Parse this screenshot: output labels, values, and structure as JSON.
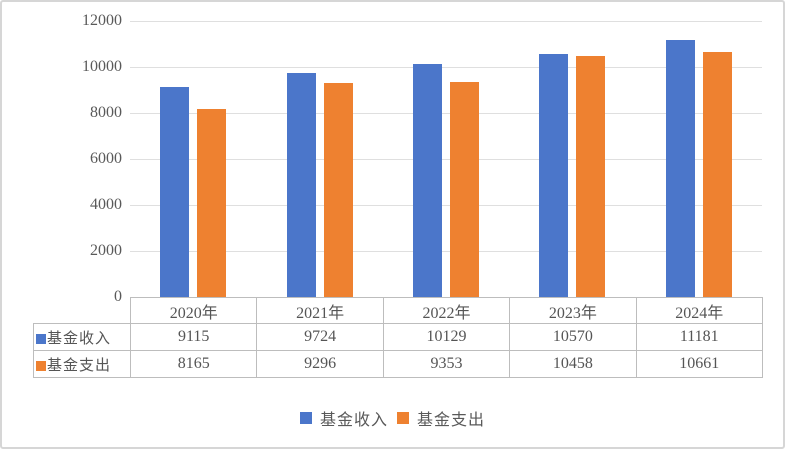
{
  "chart_data": {
    "type": "bar",
    "title": "",
    "xlabel": "",
    "ylabel": "",
    "categories": [
      "2020年",
      "2021年",
      "2022年",
      "2023年",
      "2024年"
    ],
    "series": [
      {
        "name": "基金收入",
        "values": [
          9115,
          9724,
          10129,
          10570,
          11181
        ],
        "color": "#4B76CA"
      },
      {
        "name": "基金支出",
        "values": [
          8165,
          9296,
          9353,
          10458,
          10661
        ],
        "color": "#EE8130"
      }
    ],
    "ylim": [
      0,
      12000
    ],
    "yticks": [
      0,
      2000,
      4000,
      6000,
      8000,
      10000,
      12000
    ],
    "grid": true,
    "legend_position": "bottom",
    "show_data_table": true
  },
  "colors": {
    "series_income": "#4B76CA",
    "series_expense": "#EE8130",
    "gridline": "#DFDFDF",
    "table_border": "#BDBDBD",
    "axis_text": "#595959",
    "frame_border": "#D6D6D6"
  }
}
